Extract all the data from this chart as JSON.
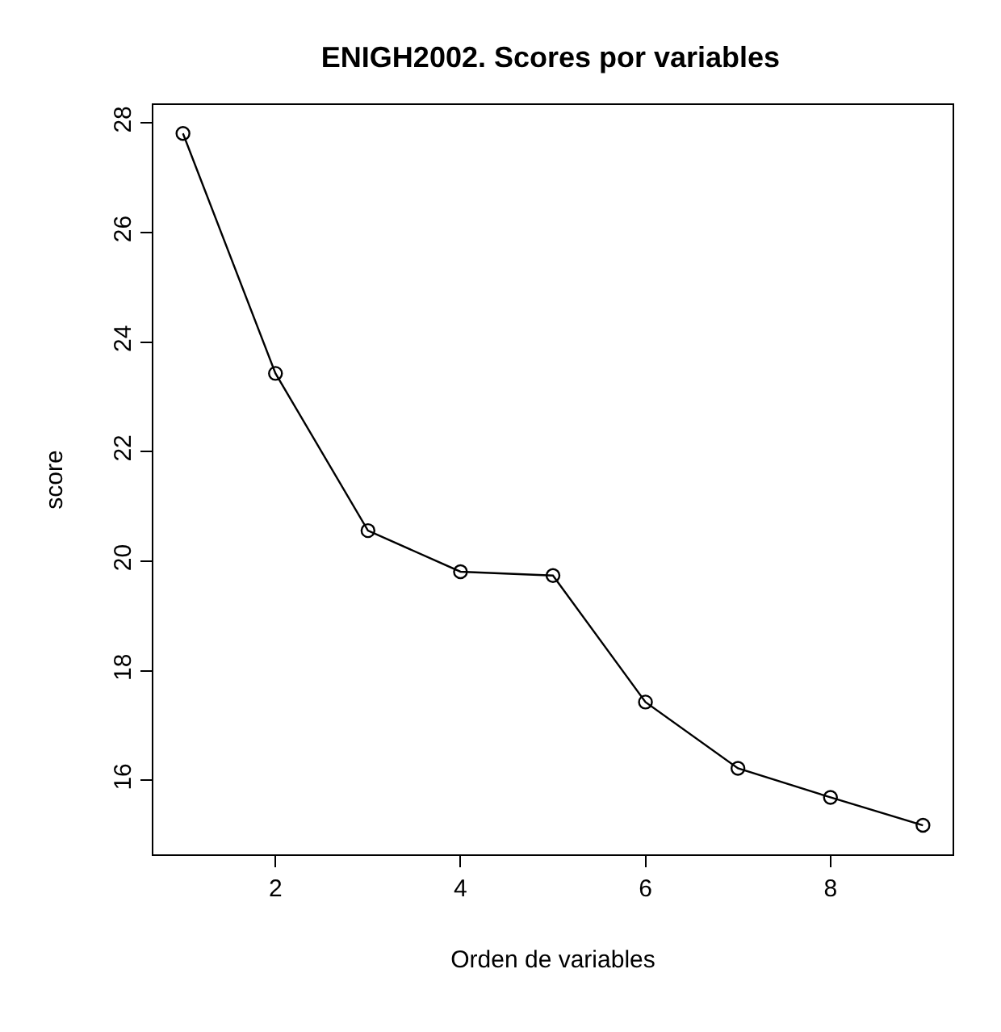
{
  "chart_data": {
    "type": "line",
    "title": "ENIGH2002. Scores por variables",
    "xlabel": "Orden de variables",
    "ylabel": "score",
    "x": [
      1,
      2,
      3,
      4,
      5,
      6,
      7,
      8,
      9
    ],
    "series": [
      {
        "color": "#000000",
        "values": [
          27.81,
          23.43,
          20.56,
          19.81,
          19.74,
          17.43,
          16.22,
          15.69,
          15.18
        ]
      }
    ],
    "xlim": [
      0.68,
      9.32
    ],
    "xticks": [
      2,
      4,
      6,
      8
    ],
    "ylim": [
      14.65,
      28.33
    ],
    "yticks": [
      16,
      18,
      20,
      22,
      24,
      26,
      28
    ],
    "marker": "circle",
    "line_style": "solid"
  }
}
